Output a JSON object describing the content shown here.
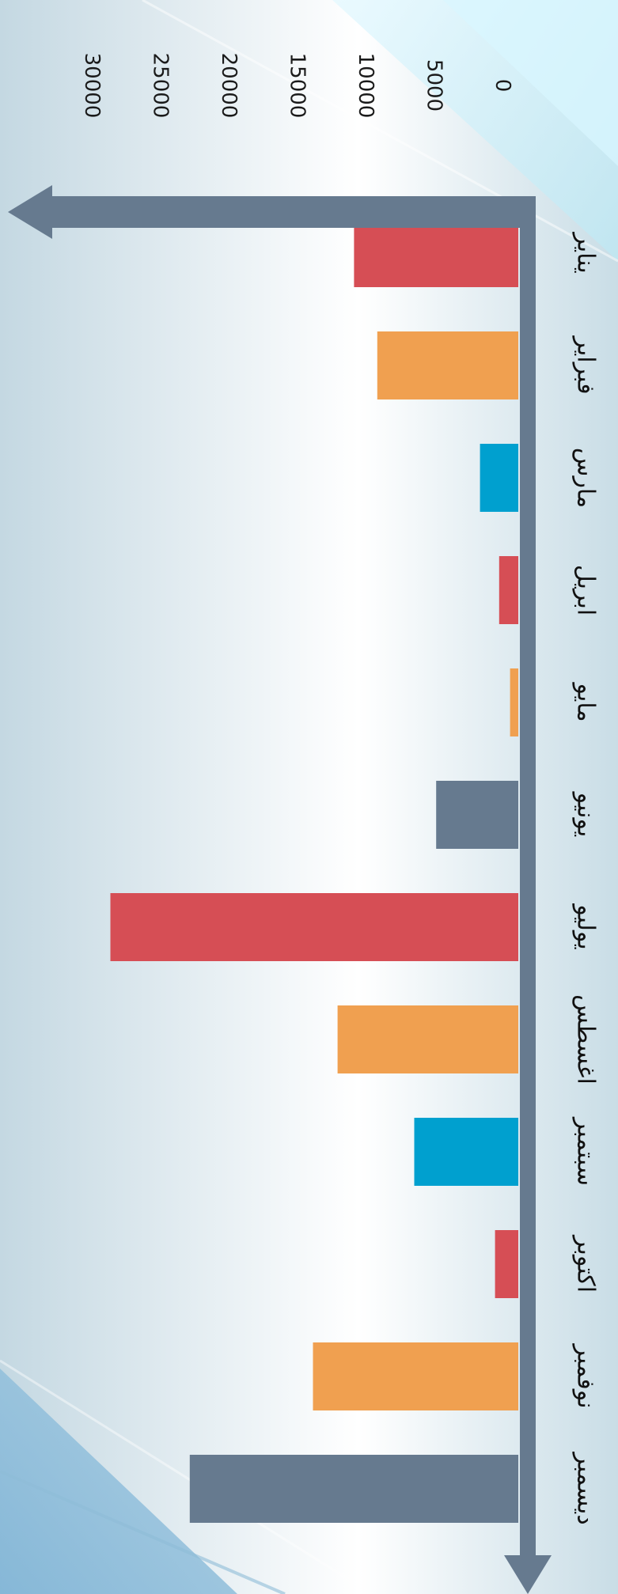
{
  "chart_data": {
    "type": "bar",
    "orientation": "horizontal",
    "title": "",
    "xlabel": "",
    "ylabel": "",
    "categories": [
      "يناير",
      "فبراير",
      "مارس",
      "ابريل",
      "مايو",
      "يونيو",
      "يوليو",
      "اغسطس",
      "سبتمبر",
      "اكتوبر",
      "نوفمبر",
      "ديسمبر"
    ],
    "values": [
      12000,
      10300,
      2800,
      1400,
      600,
      6000,
      29800,
      13200,
      7600,
      1700,
      15000,
      24000
    ],
    "bar_colors": [
      "#d64e55",
      "#f0a050",
      "#00a0cf",
      "#d64e55",
      "#f0a050",
      "#667a8f",
      "#d64e55",
      "#f0a050",
      "#00a0cf",
      "#d64e55",
      "#f0a050",
      "#667a8f"
    ],
    "axis_ticks": [
      0,
      5000,
      10000,
      15000,
      20000,
      25000,
      30000
    ],
    "tick_labels": [
      "0",
      "5000",
      "10000",
      "15000",
      "20000",
      "25000",
      "30000"
    ],
    "xlim": [
      0,
      30000
    ],
    "axis_color": "#667a8f",
    "grid": false,
    "legend": "none"
  }
}
